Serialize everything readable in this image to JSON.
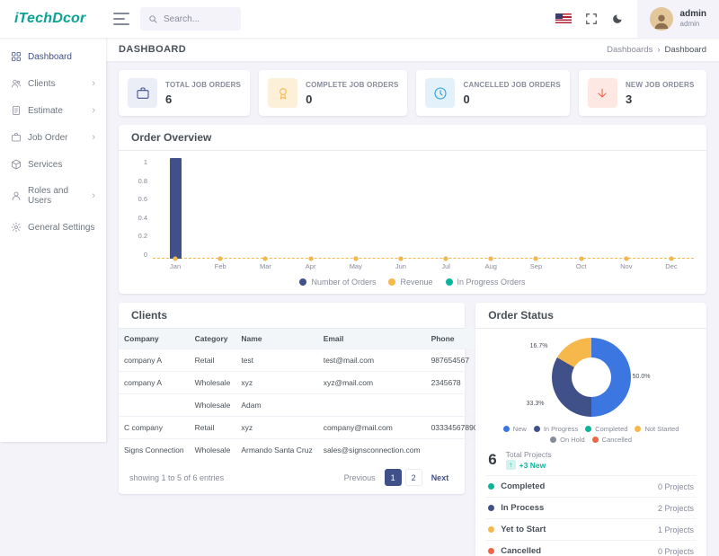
{
  "brand": {
    "logo_text": "iTechDcor"
  },
  "header": {
    "search": {
      "placeholder": "Search...",
      "value": ""
    },
    "user": {
      "name": "admin",
      "role": "admin"
    }
  },
  "page": {
    "title": "DASHBOARD",
    "breadcrumb": [
      "Dashboards",
      "Dashboard"
    ]
  },
  "sidebar": {
    "items": [
      {
        "label": "Dashboard",
        "icon": "dashboard-icon",
        "has_children": false,
        "active": true
      },
      {
        "label": "Clients",
        "icon": "clients-icon",
        "has_children": true,
        "active": false
      },
      {
        "label": "Estimate",
        "icon": "estimate-icon",
        "has_children": true,
        "active": false
      },
      {
        "label": "Job Order",
        "icon": "job-order-icon",
        "has_children": true,
        "active": false
      },
      {
        "label": "Services",
        "icon": "services-icon",
        "has_children": false,
        "active": false
      },
      {
        "label": "Roles and Users",
        "icon": "users-icon",
        "has_children": true,
        "active": false
      },
      {
        "label": "General Settings",
        "icon": "settings-icon",
        "has_children": false,
        "active": false
      }
    ]
  },
  "stat_cards": [
    {
      "label": "TOTAL JOB ORDERS",
      "value": "6",
      "icon": "briefcase-icon",
      "color": "#405189",
      "bg": "#eceef7"
    },
    {
      "label": "COMPLETE JOB ORDERS",
      "value": "0",
      "icon": "award-icon",
      "color": "#f7b84b",
      "bg": "#fdf0d9"
    },
    {
      "label": "CANCELLED JOB ORDERS",
      "value": "0",
      "icon": "clock-icon",
      "color": "#299cdb",
      "bg": "#e2f1fa"
    },
    {
      "label": "NEW JOB ORDERS",
      "value": "3",
      "icon": "arrow-down-icon",
      "color": "#f06548",
      "bg": "#fde8e4"
    }
  ],
  "chart_data": [
    {
      "type": "bar",
      "title": "Order Overview",
      "categories": [
        "Jan",
        "Feb",
        "Mar",
        "Apr",
        "May",
        "Jun",
        "Jul",
        "Aug",
        "Sep",
        "Oct",
        "Nov",
        "Dec"
      ],
      "series": [
        {
          "name": "Number of Orders",
          "type": "bar",
          "color": "#405189",
          "values": [
            1,
            0,
            0,
            0,
            0,
            0,
            0,
            0,
            0,
            0,
            0,
            0
          ]
        },
        {
          "name": "Revenue",
          "type": "line",
          "color": "#f7b84b",
          "values": [
            0,
            0,
            0,
            0,
            0,
            0,
            0,
            0,
            0,
            0,
            0,
            0
          ]
        },
        {
          "name": "In Progress Orders",
          "type": "line",
          "color": "#0ab39c",
          "values": [
            0,
            0,
            0,
            0,
            0,
            0,
            0,
            0,
            0,
            0,
            0,
            0
          ]
        }
      ],
      "ylim": [
        0,
        1
      ],
      "yticks": [
        0,
        0.2,
        0.4,
        0.6,
        0.8,
        1
      ],
      "legend_position": "bottom"
    },
    {
      "type": "pie",
      "title": "Order Status",
      "labels": [
        "New",
        "In Progress",
        "Completed",
        "Not Started",
        "On Hold",
        "Cancelled"
      ],
      "values": [
        3,
        2,
        0,
        1,
        0,
        0
      ],
      "colors": [
        "#3b76e1",
        "#405189",
        "#0ab39c",
        "#f7b84b",
        "#878a99",
        "#f06548"
      ],
      "percent_labels": [
        "50.0%",
        "33.3%",
        "16.7%"
      ],
      "donut": true
    }
  ],
  "clients": {
    "title": "Clients",
    "columns": [
      "Company",
      "Category",
      "Name",
      "Email",
      "Phone"
    ],
    "rows": [
      {
        "company": "company A",
        "category": "Retail",
        "name": "test",
        "email": "test@mail.com",
        "phone": "987654567"
      },
      {
        "company": "company A",
        "category": "Wholesale",
        "name": "xyz",
        "email": "xyz@mail.com",
        "phone": "2345678"
      },
      {
        "company": "",
        "category": "Wholesale",
        "name": "Adam",
        "email": "",
        "phone": ""
      },
      {
        "company": "C company",
        "category": "Retail",
        "name": "xyz",
        "email": "company@mail.com",
        "phone": "03334567890"
      },
      {
        "company": "Signs Connection",
        "category": "Wholesale",
        "name": "Armando Santa Cruz",
        "email": "sales@signsconnection.com",
        "phone": ""
      }
    ],
    "footer": {
      "summary": "showing 1 to 5 of 6 entries",
      "pagination": [
        "Previous",
        "1",
        "2",
        "Next"
      ],
      "active_page": "1"
    }
  },
  "order_status": {
    "title": "Order Status",
    "total": {
      "value": "6",
      "label": "Total Projects",
      "badge": "+3 New"
    },
    "rows": [
      {
        "label": "Completed",
        "color": "#0ab39c",
        "value": "0 Projects"
      },
      {
        "label": "In Process",
        "color": "#405189",
        "value": "2 Projects"
      },
      {
        "label": "Yet to Start",
        "color": "#f7b84b",
        "value": "1 Projects"
      },
      {
        "label": "Cancelled",
        "color": "#f06548",
        "value": "0 Projects"
      }
    ]
  }
}
